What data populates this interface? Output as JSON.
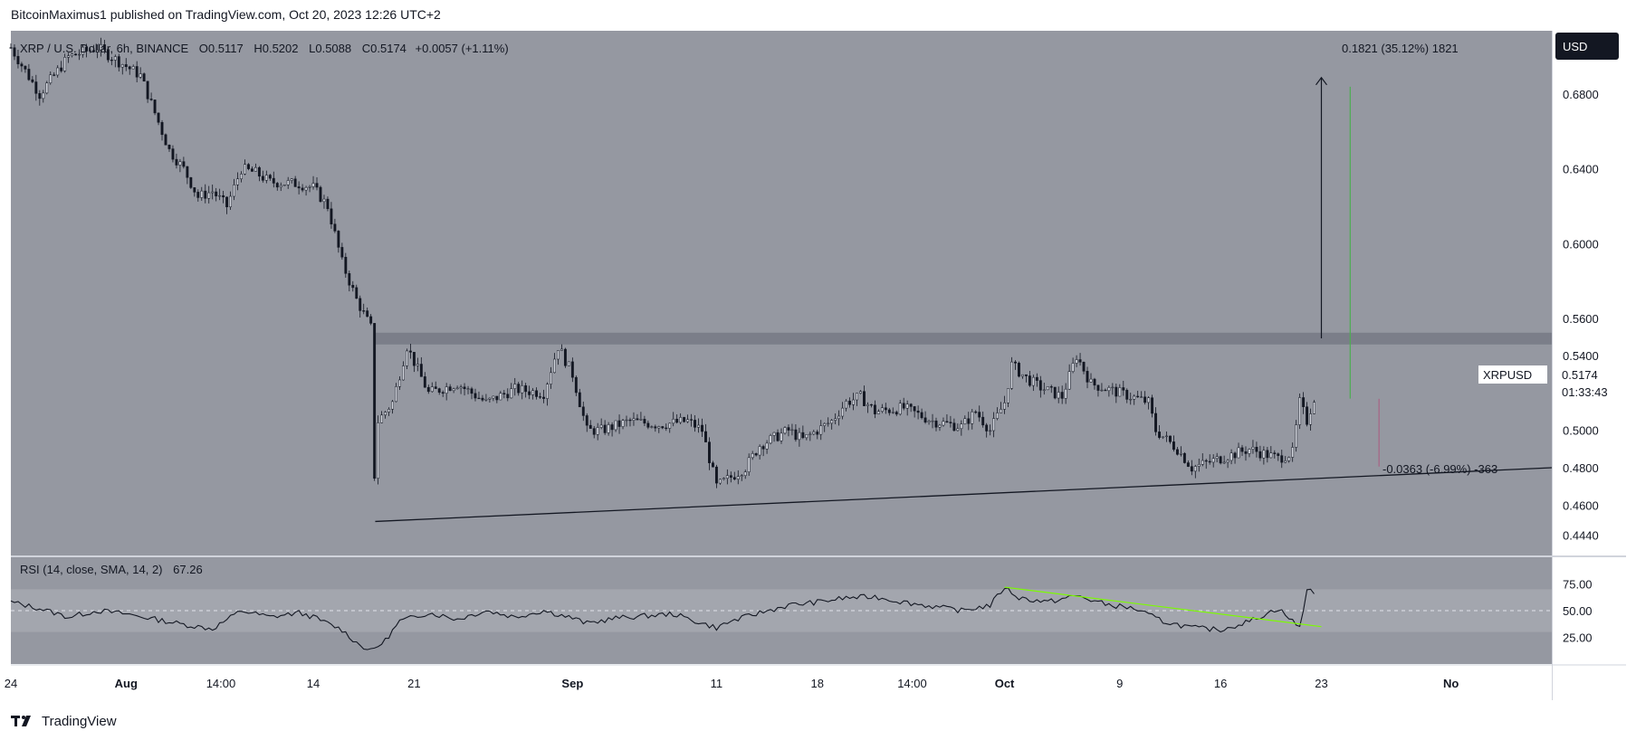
{
  "header": {
    "caption": "BitcoinMaximus1 published on TradingView.com, Oct 20, 2023 12:26 UTC+2"
  },
  "footer": {
    "brand": "TradingView"
  },
  "legend": {
    "symbol": "XRP / U.S. Dollar, 6h, BINANCE",
    "o_label": "O",
    "o": "0.5117",
    "h_label": "H",
    "h": "0.5202",
    "l_label": "L",
    "l": "0.5088",
    "c_label": "C",
    "c": "0.5174",
    "change": "+0.0057 (+1.11%)"
  },
  "currency_button": "USD",
  "price_tag": {
    "symbol": "XRPUSD",
    "price": "0.5174",
    "countdown": "01:33:43"
  },
  "measure_up": "0.1821 (35.12%) 1821",
  "measure_down": "-0.0363 (-6.99%) -363",
  "colors": {
    "pane_bg": "#9598a1",
    "axis_bg": "#ffffff",
    "candle": "#131722",
    "resistance_zone": "#787b86",
    "rsi_band": "#a3a6ae",
    "rsi_line": "#131722",
    "divergence": "#7cfc00",
    "green_line": "#4caf50",
    "red_line": "#c2185b"
  },
  "chart_data": {
    "type": "candlestick",
    "interval": "6h",
    "price_axis": {
      "ticks": [
        "0.6800",
        "0.6400",
        "0.6000",
        "0.5600",
        "0.5400",
        "0.5000",
        "0.4800",
        "0.4600",
        "0.4440"
      ],
      "ylim": [
        0.433,
        0.714
      ]
    },
    "time_axis": {
      "range_days": [
        -7,
        100
      ],
      "ticks": [
        {
          "label": "24",
          "t": -7
        },
        {
          "label": "Aug",
          "t": 1
        },
        {
          "label": "14:00",
          "t": 7.583
        },
        {
          "label": "14",
          "t": 14
        },
        {
          "label": "21",
          "t": 21
        },
        {
          "label": "Sep",
          "t": 32
        },
        {
          "label": "11",
          "t": 42
        },
        {
          "label": "18",
          "t": 49
        },
        {
          "label": "14:00",
          "t": 55.583
        },
        {
          "label": "Oct",
          "t": 62
        },
        {
          "label": "9",
          "t": 70
        },
        {
          "label": "16",
          "t": 77
        },
        {
          "label": "23",
          "t": 84
        },
        {
          "label": "No",
          "t": 93
        }
      ]
    },
    "price_path": [
      [
        -7,
        0.705
      ],
      [
        -5,
        0.68
      ],
      [
        -3,
        0.7
      ],
      [
        -1,
        0.705
      ],
      [
        1,
        0.695
      ],
      [
        2,
        0.69
      ],
      [
        3,
        0.67
      ],
      [
        4,
        0.65
      ],
      [
        5,
        0.64
      ],
      [
        6,
        0.625
      ],
      [
        7,
        0.628
      ],
      [
        8,
        0.62
      ],
      [
        9,
        0.64
      ],
      [
        10,
        0.638
      ],
      [
        11,
        0.633
      ],
      [
        13,
        0.632
      ],
      [
        14,
        0.63
      ],
      [
        15,
        0.62
      ],
      [
        16,
        0.59
      ],
      [
        17,
        0.57
      ],
      [
        18,
        0.555
      ],
      [
        18.3,
        0.46
      ],
      [
        18.5,
        0.505
      ],
      [
        19.5,
        0.515
      ],
      [
        20.5,
        0.545
      ],
      [
        22,
        0.52
      ],
      [
        24,
        0.525
      ],
      [
        26,
        0.515
      ],
      [
        28,
        0.522
      ],
      [
        30,
        0.52
      ],
      [
        31,
        0.545
      ],
      [
        32,
        0.53
      ],
      [
        33,
        0.5
      ],
      [
        34,
        0.5
      ],
      [
        36,
        0.505
      ],
      [
        38,
        0.503
      ],
      [
        40,
        0.505
      ],
      [
        41,
        0.5
      ],
      [
        42,
        0.47
      ],
      [
        43,
        0.475
      ],
      [
        44,
        0.48
      ],
      [
        45,
        0.492
      ],
      [
        47,
        0.5
      ],
      [
        48,
        0.495
      ],
      [
        50,
        0.505
      ],
      [
        51,
        0.515
      ],
      [
        52,
        0.518
      ],
      [
        53,
        0.51
      ],
      [
        55,
        0.512
      ],
      [
        57,
        0.505
      ],
      [
        59,
        0.502
      ],
      [
        60,
        0.51
      ],
      [
        61,
        0.5
      ],
      [
        62,
        0.515
      ],
      [
        62.5,
        0.535
      ],
      [
        63.5,
        0.528
      ],
      [
        64.5,
        0.523
      ],
      [
        66,
        0.518
      ],
      [
        67,
        0.54
      ],
      [
        68,
        0.525
      ],
      [
        70,
        0.52
      ],
      [
        72,
        0.515
      ],
      [
        72.5,
        0.5
      ],
      [
        74,
        0.49
      ],
      [
        75,
        0.48
      ],
      [
        77,
        0.485
      ],
      [
        79,
        0.49
      ],
      [
        81,
        0.485
      ],
      [
        82,
        0.488
      ],
      [
        82.5,
        0.515
      ],
      [
        83,
        0.505
      ],
      [
        83.5,
        0.5174
      ]
    ],
    "resistance_zone": {
      "low": 0.546,
      "high": 0.5523,
      "t_start": 18.3,
      "t_end": 100
    },
    "support_line": [
      [
        18.3,
        0.4512
      ],
      [
        100,
        0.48
      ]
    ],
    "measure_arrow": {
      "t": 84,
      "from": 0.5493,
      "to": 0.6889
    },
    "green_line": {
      "t": 86,
      "from": 0.517,
      "to": 0.684
    },
    "red_line": {
      "t": 88,
      "from": 0.4806,
      "to": 0.5169
    },
    "rsi": {
      "label": "RSI (14, close, SMA, 14, 2)",
      "value": "67.26",
      "ticks": [
        "75.00",
        "50.00",
        "25.00"
      ],
      "ylim": [
        0,
        100
      ],
      "levels": {
        "upper": 70,
        "middle": 50,
        "lower": 30
      },
      "path": [
        [
          -7,
          58
        ],
        [
          -5,
          52
        ],
        [
          -3,
          44
        ],
        [
          -1,
          50
        ],
        [
          1,
          47
        ],
        [
          3,
          42
        ],
        [
          5,
          37
        ],
        [
          7,
          33
        ],
        [
          9,
          50
        ],
        [
          11,
          44
        ],
        [
          13,
          48
        ],
        [
          14,
          44
        ],
        [
          16,
          32
        ],
        [
          17,
          20
        ],
        [
          18,
          12
        ],
        [
          19,
          22
        ],
        [
          20,
          40
        ],
        [
          22,
          48
        ],
        [
          24,
          42
        ],
        [
          26,
          50
        ],
        [
          28,
          44
        ],
        [
          30,
          50
        ],
        [
          32,
          43
        ],
        [
          33,
          38
        ],
        [
          35,
          43
        ],
        [
          37,
          45
        ],
        [
          39,
          47
        ],
        [
          41,
          38
        ],
        [
          42,
          34
        ],
        [
          43,
          40
        ],
        [
          45,
          48
        ],
        [
          47,
          55
        ],
        [
          49,
          58
        ],
        [
          51,
          62
        ],
        [
          53,
          63
        ],
        [
          55,
          58
        ],
        [
          57,
          54
        ],
        [
          59,
          50
        ],
        [
          61,
          55
        ],
        [
          62,
          72
        ],
        [
          63,
          62
        ],
        [
          65,
          58
        ],
        [
          67,
          64
        ],
        [
          69,
          56
        ],
        [
          71,
          52
        ],
        [
          73,
          40
        ],
        [
          75,
          34
        ],
        [
          77,
          32
        ],
        [
          79,
          40
        ],
        [
          80,
          46
        ],
        [
          81,
          52
        ],
        [
          82,
          40
        ],
        [
          82.5,
          34
        ],
        [
          83,
          70
        ],
        [
          83.5,
          68
        ]
      ],
      "divergence_line": [
        [
          62,
          72
        ],
        [
          84,
          35
        ]
      ]
    }
  }
}
